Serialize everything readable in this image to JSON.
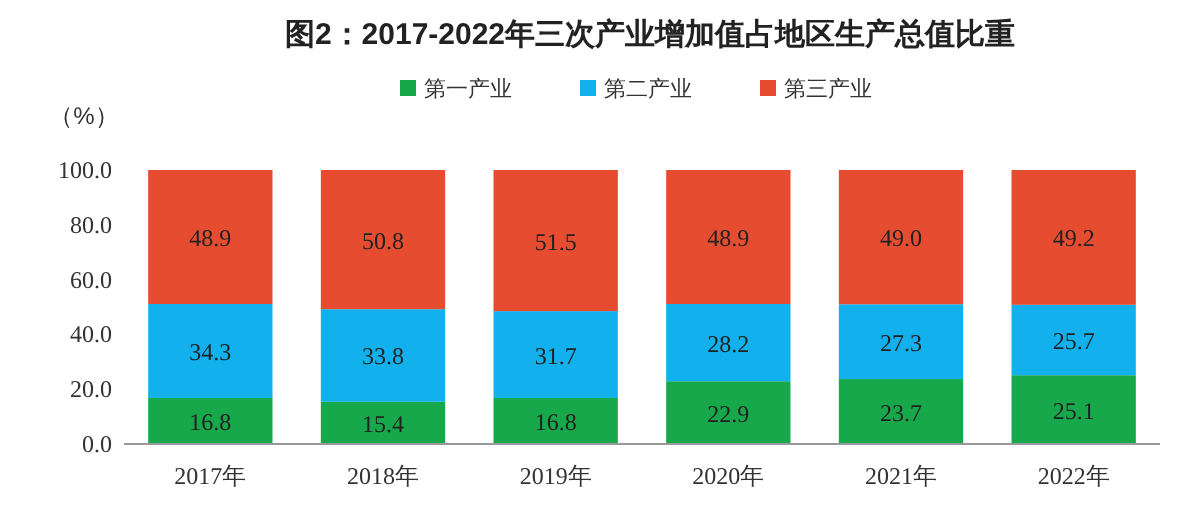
{
  "chart_data": {
    "type": "bar",
    "title": "图2：2017-2022年三次产业增加值占地区生产总值比重",
    "ylabel": "（%）",
    "stacked": true,
    "legend": "top",
    "categories": [
      "2017年",
      "2018年",
      "2019年",
      "2020年",
      "2021年",
      "2022年"
    ],
    "ylim": [
      0,
      100
    ],
    "yticks": [
      {
        "value": 0,
        "label": "0.0"
      },
      {
        "value": 20,
        "label": "20.0"
      },
      {
        "value": 40,
        "label": "40.0"
      },
      {
        "value": 60,
        "label": "60.0"
      },
      {
        "value": 80,
        "label": "80.0"
      },
      {
        "value": 100,
        "label": "100.0"
      }
    ],
    "series": [
      {
        "name": "第一产业",
        "color": "#17a84b",
        "values": [
          16.8,
          15.4,
          16.8,
          22.9,
          23.7,
          25.1
        ],
        "value_labels": [
          "16.8",
          "15.4",
          "16.8",
          "22.9",
          "23.7",
          "25.1"
        ]
      },
      {
        "name": "第二产业",
        "color": "#12b1ee",
        "values": [
          34.3,
          33.8,
          31.7,
          28.2,
          27.3,
          25.7
        ],
        "value_labels": [
          "34.3",
          "33.8",
          "31.7",
          "28.2",
          "27.3",
          "25.7"
        ]
      },
      {
        "name": "第三产业",
        "color": "#e54c30",
        "values": [
          48.9,
          50.8,
          51.5,
          48.9,
          49.0,
          49.2
        ],
        "value_labels": [
          "48.9",
          "50.8",
          "51.5",
          "48.9",
          "49.0",
          "49.2"
        ]
      }
    ]
  }
}
